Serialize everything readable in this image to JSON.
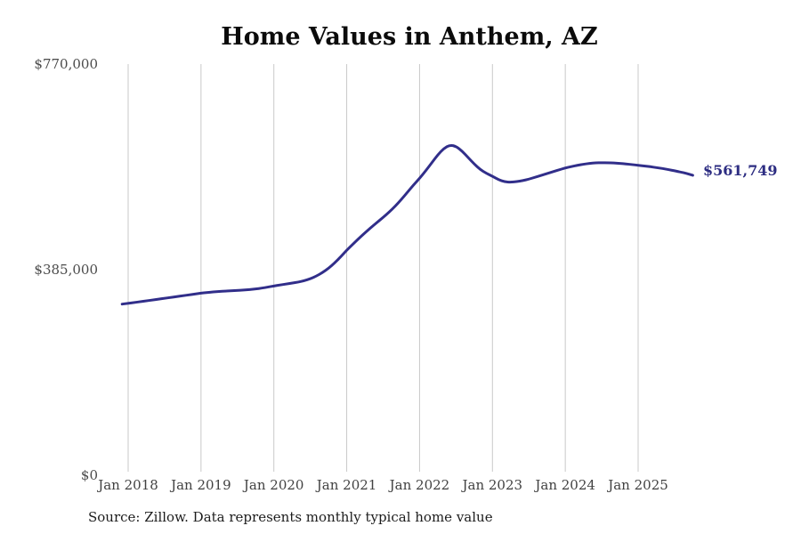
{
  "chart_data": {
    "type": "line",
    "title": "Home Values in Anthem, AZ",
    "source_note": "Source: Zillow. Data represents monthly typical home value",
    "end_label": "$561,749",
    "end_value": 561749,
    "ylim": [
      0,
      770000
    ],
    "grid": "vertical-only",
    "legend": "none",
    "x_tick_labels": [
      "Jan 2018",
      "Jan 2019",
      "Jan 2020",
      "Jan 2021",
      "Jan 2022",
      "Jan 2023",
      "Jan 2024",
      "Jan 2025"
    ],
    "y_ticks": [
      {
        "label": "$770,000",
        "value": 770000
      },
      {
        "label": "$385,000",
        "value": 385000
      },
      {
        "label": "$0",
        "value": 0
      }
    ],
    "series": [
      {
        "name": "Monthly typical home value",
        "color": "#312e8a",
        "frequency": "monthly",
        "start_month": "2017-12",
        "values": [
          320500,
          322000,
          323500,
          325000,
          326600,
          328200,
          329800,
          331400,
          333000,
          334600,
          336200,
          337800,
          339400,
          341000,
          342200,
          343300,
          344200,
          344900,
          345500,
          346100,
          346800,
          347700,
          348900,
          350400,
          352300,
          354500,
          356300,
          358100,
          359900,
          361800,
          364300,
          368000,
          373000,
          379500,
          387500,
          397500,
          409000,
          421500,
          432500,
          443500,
          454000,
          464000,
          473500,
          483000,
          493000,
          504000,
          516500,
          530000,
          543500,
          556000,
          570000,
          585000,
          600000,
          612000,
          618500,
          616000,
          607000,
          595000,
          583000,
          572500,
          565500,
          560000,
          553500,
          549500,
          548800,
          549800,
          551800,
          554500,
          558000,
          561500,
          565000,
          568500,
          572000,
          575500,
          578000,
          580500,
          582500,
          584000,
          585000,
          585300,
          585200,
          584700,
          584000,
          583000,
          581800,
          580500,
          579200,
          577800,
          576200,
          574400,
          572400,
          570200,
          567800,
          565200,
          561749
        ]
      }
    ],
    "colors": {
      "line": "#312e8a",
      "end_label_text": "#2d2d82",
      "gridline": "#c9c9c9",
      "axis_text": "#4b4b4b",
      "title_text": "#0b0b0b",
      "source_text": "#1c1c1c",
      "background": "#ffffff"
    }
  }
}
